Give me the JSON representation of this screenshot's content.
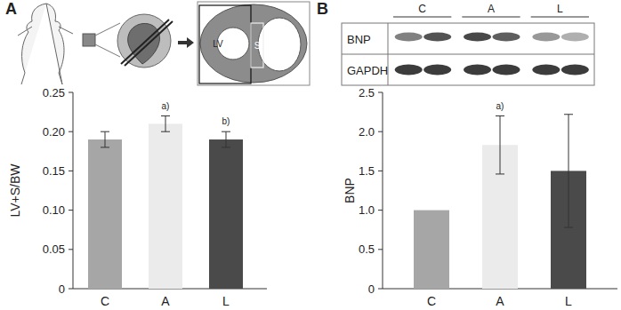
{
  "chart_data": [
    {
      "type": "bar",
      "title": "A",
      "y_label": "LV+S/BW",
      "categories": [
        "C",
        "A",
        "L"
      ],
      "values": [
        0.19,
        0.21,
        0.19
      ],
      "errors": [
        0.01,
        0.01,
        0.01
      ],
      "colors": [
        "#a6a6a6",
        "#ebebeb",
        "#4a4a4a"
      ],
      "ylim": [
        0,
        0.25
      ],
      "yticks": [
        0,
        0.05,
        {
          "value": 0.1,
          "label": "0.10"
        },
        0.15,
        {
          "value": 0.2,
          "label": "0.20"
        },
        0.25
      ],
      "annotations": [
        {
          "text": "a)",
          "category": "A"
        },
        {
          "text": "b)",
          "category": "L"
        }
      ],
      "diagram_labels": [
        "LV",
        "S"
      ]
    },
    {
      "type": "bar",
      "title": "B",
      "y_label": "BNP",
      "categories": [
        "C",
        "A",
        "L"
      ],
      "values": [
        1,
        1.83,
        1.5
      ],
      "errors": [
        null,
        0.37,
        0.72
      ],
      "colors": [
        "#a6a6a6",
        "#ebebeb",
        "#4a4a4a"
      ],
      "ylim": [
        0,
        2.5
      ],
      "yticks": [
        0,
        0.5,
        {
          "value": 1,
          "label": "1.0"
        },
        1.5,
        {
          "value": 2,
          "label": "2.0"
        },
        2.5
      ],
      "annotations": [
        {
          "text": "a)",
          "category": "A"
        }
      ],
      "blot": {
        "lanes": [
          "C",
          "A",
          "L"
        ],
        "rows": [
          "BNP",
          "GAPDH"
        ]
      }
    }
  ]
}
